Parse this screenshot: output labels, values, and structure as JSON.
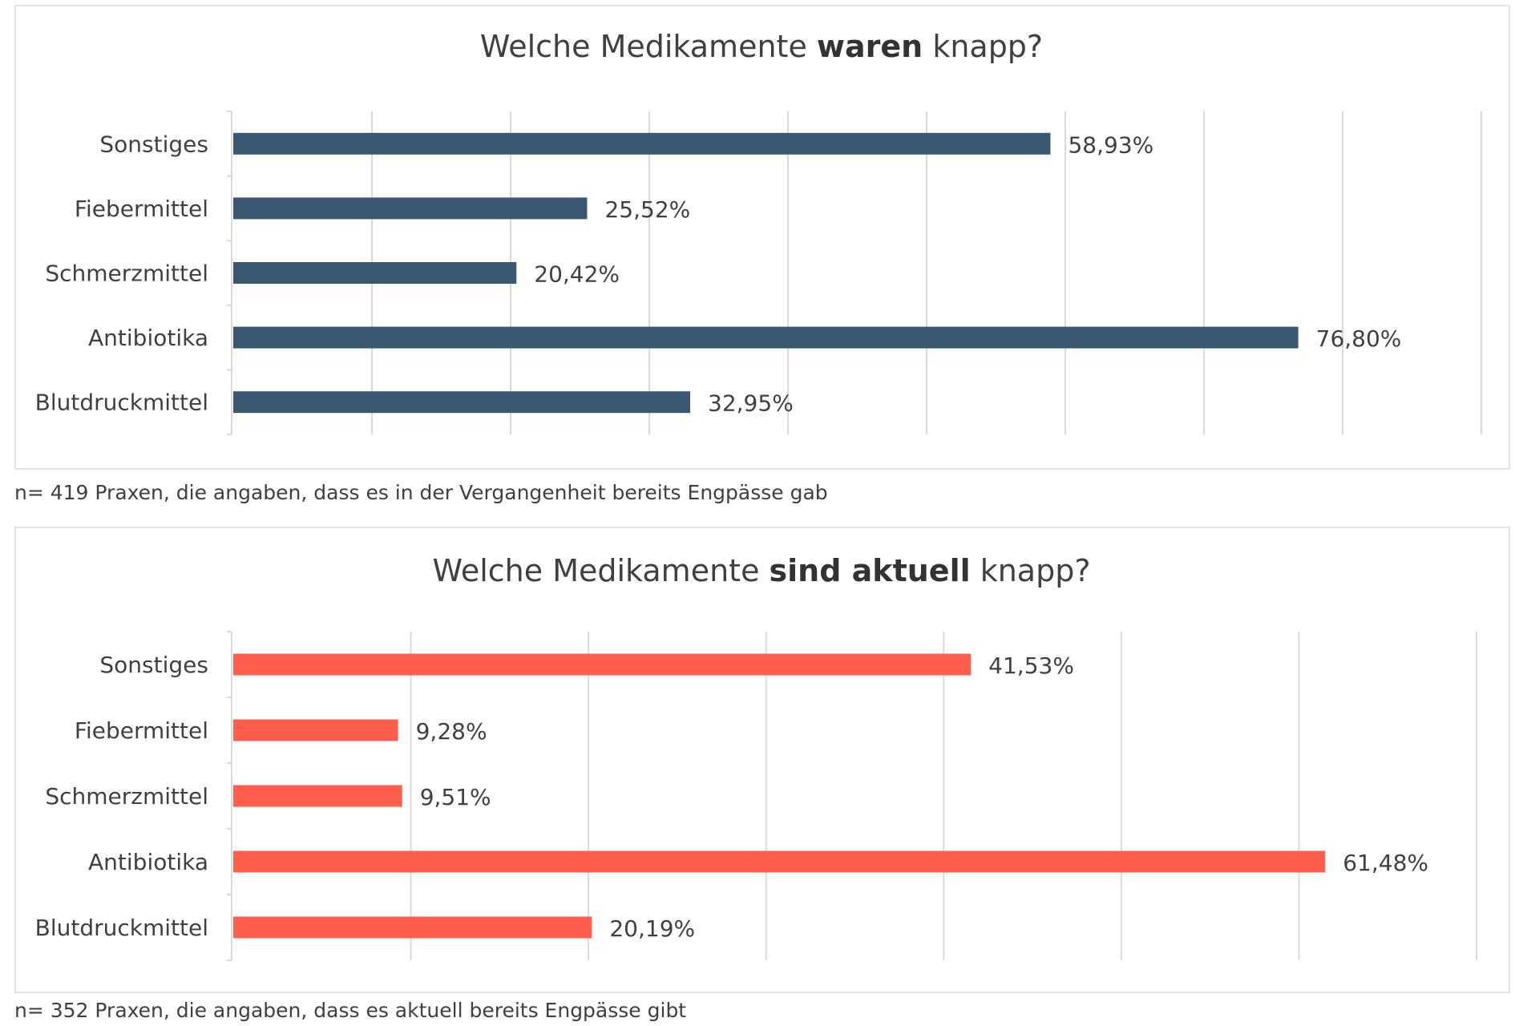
{
  "chart_data": [
    {
      "type": "bar",
      "orientation": "horizontal",
      "title_parts": [
        {
          "text": "Welche Medikamente ",
          "bold": false
        },
        {
          "text": "waren",
          "bold": true
        },
        {
          "text": " knapp?",
          "bold": false
        }
      ],
      "categories": [
        "Sonstiges",
        "Fiebermittel",
        "Schmerzmittel",
        "Antibiotika",
        "Blutdruckmittel"
      ],
      "values": [
        58.93,
        25.52,
        20.42,
        76.8,
        32.95
      ],
      "value_labels": [
        "58,93%",
        "25,52%",
        "20,42%",
        "76,80%",
        "32,95%"
      ],
      "xlim": [
        0,
        90
      ],
      "gridline_step": 10,
      "grid": true,
      "tick_labels_visible": false,
      "bar_color": "#3b5873",
      "note": "n= 419 Praxen, die angaben, dass es in der Vergangenheit bereits Engpässe gab"
    },
    {
      "type": "bar",
      "orientation": "horizontal",
      "title_parts": [
        {
          "text": "Welche Medikamente ",
          "bold": false
        },
        {
          "text": "sind aktuell",
          "bold": true
        },
        {
          "text": " knapp?",
          "bold": false
        }
      ],
      "categories": [
        "Sonstiges",
        "Fiebermittel",
        "Schmerzmittel",
        "Antibiotika",
        "Blutdruckmittel"
      ],
      "values": [
        41.53,
        9.28,
        9.51,
        61.48,
        20.19
      ],
      "value_labels": [
        "41,53%",
        "9,28%",
        "9,51%",
        "61,48%",
        "20,19%"
      ],
      "xlim": [
        0,
        70
      ],
      "gridline_step": 10,
      "grid": true,
      "tick_labels_visible": false,
      "bar_color": "#fe5e4b",
      "note": "n= 352 Praxen, die angaben, dass es aktuell bereits Engpässe gibt"
    }
  ]
}
